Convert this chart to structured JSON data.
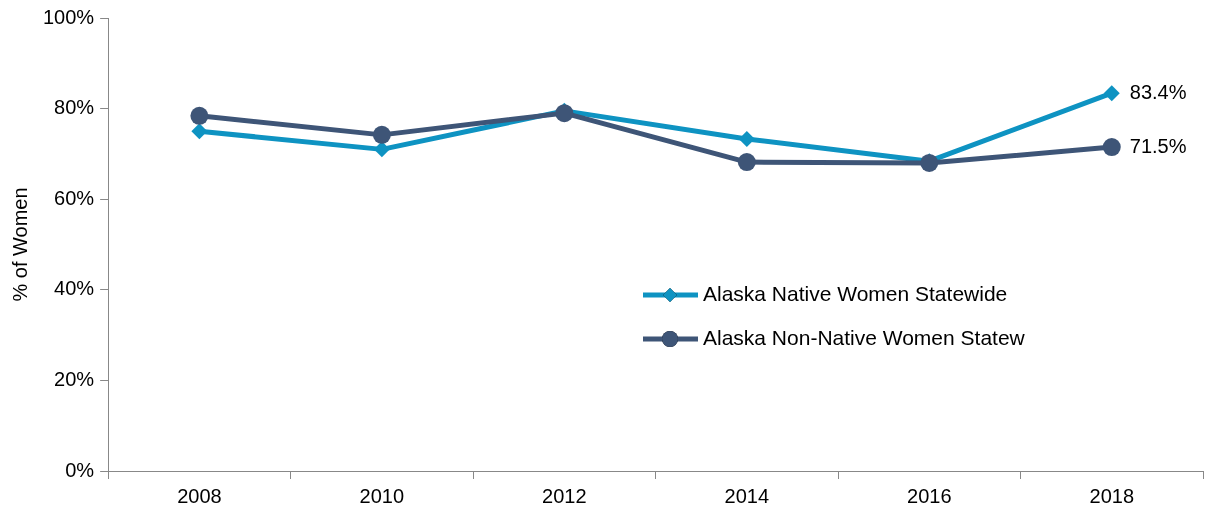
{
  "chart_data": {
    "type": "line",
    "ylabel": "% of Women",
    "categories": [
      "2008",
      "2010",
      "2012",
      "2014",
      "2016",
      "2018"
    ],
    "ylim": [
      0,
      100
    ],
    "yticks": [
      {
        "value": 0,
        "label": "0%"
      },
      {
        "value": 20,
        "label": "20%"
      },
      {
        "value": 40,
        "label": "40%"
      },
      {
        "value": 60,
        "label": "60%"
      },
      {
        "value": 80,
        "label": "80%"
      },
      {
        "value": 100,
        "label": "100%"
      }
    ],
    "grid": false,
    "legend": "bottom right",
    "line_style": "solid",
    "series": [
      {
        "name": "Alaska Native Women Statewide",
        "color": "#0e93c2",
        "marker": "diamond",
        "values": [
          75,
          71,
          79.5,
          73.3,
          68.4,
          83.4
        ],
        "value_labels": [
          null,
          null,
          null,
          null,
          null,
          "83.4%"
        ]
      },
      {
        "name": "Alaska Non-Native Women Statew",
        "color": "#3e5577",
        "marker": "circle",
        "values": [
          78.4,
          74.2,
          79,
          68.2,
          68,
          71.5
        ],
        "value_labels": [
          null,
          null,
          null,
          null,
          null,
          "71.5%"
        ]
      }
    ]
  }
}
